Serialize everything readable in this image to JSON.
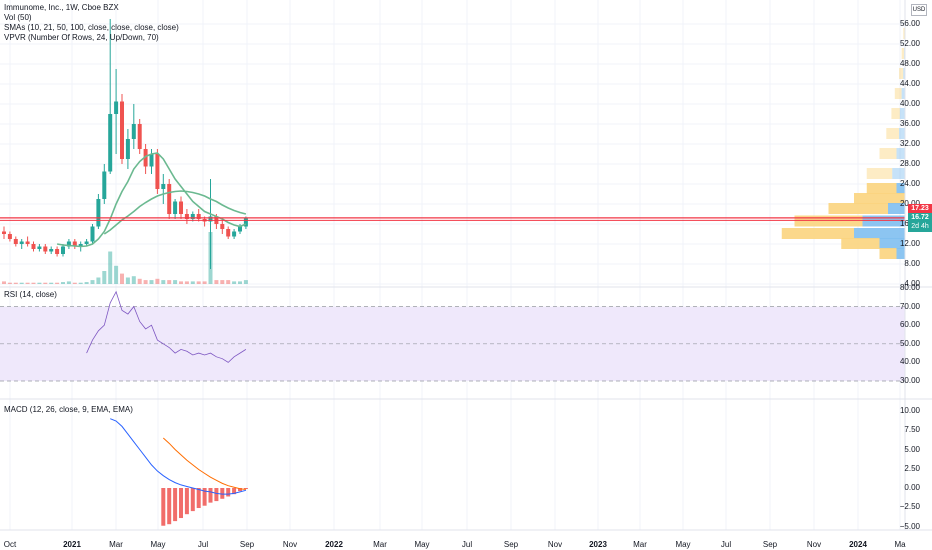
{
  "legend": {
    "symbol": "Immunome, Inc., 1W, Cboe BZX",
    "vol": "Vol (50)",
    "smas": "SMAs (10, 21, 50, 100, close, close, close, close)",
    "vpvr": "VPVR (Number Of Rows, 24, Up/Down, 70)"
  },
  "rsi_legend": "RSI (14, close)",
  "macd_legend": "MACD (12, 26, close, 9, EMA, EMA)",
  "currency": "USD",
  "price_axis": [
    "56.00",
    "52.00",
    "48.00",
    "44.00",
    "40.00",
    "36.00",
    "32.00",
    "28.00",
    "24.00",
    "20.00",
    "16.00",
    "12.00",
    "8.00",
    "4.00"
  ],
  "price_tags": {
    "price1": "17.23",
    "price2": "16.72",
    "countdown": "2d 4h"
  },
  "rsi_axis": [
    "80.00",
    "70.00",
    "60.00",
    "50.00",
    "40.00",
    "30.00"
  ],
  "macd_axis": [
    "10.00",
    "7.50",
    "5.00",
    "2.50",
    "0.00",
    "−2.50",
    "−5.00"
  ],
  "time_axis": [
    "Oct",
    "2021",
    "Mar",
    "May",
    "Jul",
    "Sep",
    "Nov",
    "2022",
    "Mar",
    "May",
    "Jul",
    "Sep",
    "Nov",
    "2023",
    "Mar",
    "May",
    "Jul",
    "Sep",
    "Nov",
    "2024",
    "Ma"
  ],
  "colors": {
    "up": "#26a69a",
    "down": "#ef5350",
    "sma_green": "#6bb990",
    "rsi_line": "#7e57c2",
    "rsi_band": "#efe8fb",
    "macd": "#2962ff",
    "signal": "#ff6d00",
    "price_line": "#f23645",
    "vp_up": "#fbd47e",
    "vp_down": "#80bff0"
  },
  "chart_data": {
    "type": "candlestick",
    "candles": [
      {
        "o": 14.5,
        "h": 15.5,
        "l": 13.0,
        "c": 14.0
      },
      {
        "o": 14.0,
        "h": 14.5,
        "l": 12.5,
        "c": 13.0
      },
      {
        "o": 13.0,
        "h": 13.5,
        "l": 11.5,
        "c": 12.0
      },
      {
        "o": 12.0,
        "h": 13.0,
        "l": 11.0,
        "c": 12.5
      },
      {
        "o": 12.5,
        "h": 13.5,
        "l": 11.5,
        "c": 12.0
      },
      {
        "o": 12.0,
        "h": 12.5,
        "l": 10.5,
        "c": 11.0
      },
      {
        "o": 11.0,
        "h": 12.0,
        "l": 10.5,
        "c": 11.5
      },
      {
        "o": 11.5,
        "h": 12.0,
        "l": 10.0,
        "c": 10.5
      },
      {
        "o": 10.5,
        "h": 11.5,
        "l": 10.0,
        "c": 11.0
      },
      {
        "o": 11.0,
        "h": 11.5,
        "l": 9.5,
        "c": 10.0
      },
      {
        "o": 10.0,
        "h": 12.0,
        "l": 9.5,
        "c": 11.5
      },
      {
        "o": 11.5,
        "h": 13.0,
        "l": 11.0,
        "c": 12.5
      },
      {
        "o": 12.5,
        "h": 13.0,
        "l": 11.0,
        "c": 11.5
      },
      {
        "o": 11.5,
        "h": 12.5,
        "l": 10.5,
        "c": 12.0
      },
      {
        "o": 12.0,
        "h": 13.0,
        "l": 11.5,
        "c": 12.5
      },
      {
        "o": 12.5,
        "h": 16.0,
        "l": 12.0,
        "c": 15.5
      },
      {
        "o": 15.5,
        "h": 22.0,
        "l": 15.0,
        "c": 21.0
      },
      {
        "o": 21.0,
        "h": 28.0,
        "l": 20.0,
        "c": 26.5
      },
      {
        "o": 26.5,
        "h": 60.0,
        "l": 26.0,
        "c": 38.0
      },
      {
        "o": 38.0,
        "h": 47.0,
        "l": 30.0,
        "c": 40.5
      },
      {
        "o": 40.5,
        "h": 42.0,
        "l": 28.0,
        "c": 29.0
      },
      {
        "o": 29.0,
        "h": 35.0,
        "l": 27.0,
        "c": 33.0
      },
      {
        "o": 33.0,
        "h": 40.0,
        "l": 31.0,
        "c": 36.0
      },
      {
        "o": 36.0,
        "h": 37.0,
        "l": 30.0,
        "c": 31.0
      },
      {
        "o": 31.0,
        "h": 32.0,
        "l": 26.0,
        "c": 27.5
      },
      {
        "o": 27.5,
        "h": 31.0,
        "l": 26.0,
        "c": 30.0
      },
      {
        "o": 30.0,
        "h": 31.0,
        "l": 22.0,
        "c": 23.0
      },
      {
        "o": 23.0,
        "h": 26.0,
        "l": 20.0,
        "c": 24.0
      },
      {
        "o": 24.0,
        "h": 25.0,
        "l": 17.0,
        "c": 18.0
      },
      {
        "o": 18.0,
        "h": 21.0,
        "l": 17.0,
        "c": 20.5
      },
      {
        "o": 20.5,
        "h": 21.5,
        "l": 17.0,
        "c": 18.0
      },
      {
        "o": 18.0,
        "h": 19.0,
        "l": 16.0,
        "c": 17.0
      },
      {
        "o": 17.0,
        "h": 18.5,
        "l": 16.5,
        "c": 18.0
      },
      {
        "o": 18.0,
        "h": 19.0,
        "l": 16.5,
        "c": 17.0
      },
      {
        "o": 17.0,
        "h": 17.5,
        "l": 15.5,
        "c": 16.5
      },
      {
        "o": 16.5,
        "h": 25.0,
        "l": 7.0,
        "c": 17.5
      },
      {
        "o": 17.5,
        "h": 18.0,
        "l": 15.0,
        "c": 16.0
      },
      {
        "o": 16.0,
        "h": 17.0,
        "l": 14.0,
        "c": 15.0
      },
      {
        "o": 15.0,
        "h": 15.5,
        "l": 13.0,
        "c": 13.5
      },
      {
        "o": 13.5,
        "h": 15.0,
        "l": 13.0,
        "c": 14.5
      },
      {
        "o": 14.5,
        "h": 16.0,
        "l": 14.0,
        "c": 15.5
      },
      {
        "o": 15.5,
        "h": 17.5,
        "l": 15.0,
        "c": 17.2
      }
    ],
    "volume": [
      0.2,
      0.1,
      0.1,
      0.1,
      0.1,
      0.1,
      0.1,
      0.1,
      0.1,
      0.1,
      0.15,
      0.2,
      0.1,
      0.1,
      0.15,
      0.3,
      0.5,
      1.0,
      2.5,
      1.4,
      0.8,
      0.5,
      0.6,
      0.4,
      0.3,
      0.3,
      0.4,
      0.3,
      0.3,
      0.3,
      0.2,
      0.2,
      0.2,
      0.2,
      0.2,
      4.0,
      0.3,
      0.3,
      0.3,
      0.2,
      0.2,
      0.3
    ],
    "sma_fast": [
      null,
      null,
      null,
      null,
      null,
      null,
      null,
      null,
      null,
      12.0,
      11.8,
      11.7,
      11.6,
      11.5,
      11.6,
      12.0,
      13.0,
      14.5,
      17.0,
      20.0,
      22.5,
      24.5,
      27.0,
      28.5,
      29.5,
      30.0,
      30.2,
      29.0,
      27.0,
      25.0,
      23.5,
      22.0,
      20.5,
      19.5,
      18.5,
      18.0,
      17.5,
      17.0,
      16.3,
      15.8,
      15.5,
      16.0
    ],
    "sma_slow": [
      null,
      null,
      null,
      null,
      null,
      null,
      null,
      null,
      null,
      null,
      null,
      null,
      null,
      null,
      null,
      null,
      null,
      14.0,
      14.8,
      15.8,
      16.8,
      17.6,
      18.5,
      19.5,
      20.3,
      21.0,
      21.6,
      22.0,
      22.3,
      22.5,
      22.6,
      22.5,
      22.3,
      22.0,
      21.6,
      21.0,
      20.5,
      19.8,
      19.2,
      18.7,
      18.3,
      18.0
    ],
    "rsi": [
      null,
      null,
      null,
      null,
      null,
      null,
      null,
      null,
      null,
      null,
      null,
      null,
      null,
      null,
      45,
      52,
      57,
      60,
      72,
      78,
      68,
      66,
      70,
      62,
      58,
      60,
      52,
      50,
      48,
      45,
      47,
      46,
      44,
      45,
      44,
      45,
      43,
      42,
      40,
      43,
      45,
      47
    ],
    "macd": [
      null,
      null,
      null,
      null,
      null,
      null,
      null,
      null,
      null,
      null,
      null,
      null,
      null,
      null,
      null,
      null,
      null,
      null,
      9.0,
      8.7,
      8.0,
      7.0,
      6.0,
      5.0,
      4.0,
      3.0,
      2.2,
      1.6,
      1.1,
      0.7,
      0.4,
      0.2,
      0.0,
      -0.2,
      -0.4,
      -0.5,
      -0.7,
      -0.8,
      -0.8,
      -0.7,
      -0.5,
      -0.3
    ],
    "signal": [
      null,
      null,
      null,
      null,
      null,
      null,
      null,
      null,
      null,
      null,
      null,
      null,
      null,
      null,
      null,
      null,
      null,
      null,
      null,
      null,
      null,
      null,
      null,
      null,
      null,
      null,
      null,
      6.5,
      5.8,
      5.0,
      4.3,
      3.6,
      3.0,
      2.4,
      1.9,
      1.4,
      1.0,
      0.6,
      0.3,
      0.1,
      -0.1,
      -0.2
    ],
    "vp_rows": [
      {
        "p": 54,
        "u": 0.02,
        "d": 0.0
      },
      {
        "p": 50,
        "u": 0.03,
        "d": 0.01
      },
      {
        "p": 46,
        "u": 0.05,
        "d": 0.02
      },
      {
        "p": 42,
        "u": 0.08,
        "d": 0.04
      },
      {
        "p": 38,
        "u": 0.1,
        "d": 0.06
      },
      {
        "p": 34,
        "u": 0.15,
        "d": 0.07
      },
      {
        "p": 30,
        "u": 0.2,
        "d": 0.1
      },
      {
        "p": 26,
        "u": 0.3,
        "d": 0.15
      },
      {
        "p": 23,
        "u": 0.35,
        "d": 0.1
      },
      {
        "p": 21,
        "u": 0.6,
        "d": 0.0
      },
      {
        "p": 19,
        "u": 0.7,
        "d": 0.2
      },
      {
        "p": 16.5,
        "u": 0.8,
        "d": 0.5
      },
      {
        "p": 14,
        "u": 0.85,
        "d": 0.6
      },
      {
        "p": 12,
        "u": 0.45,
        "d": 0.3
      },
      {
        "p": 10,
        "u": 0.2,
        "d": 0.1
      }
    ]
  }
}
